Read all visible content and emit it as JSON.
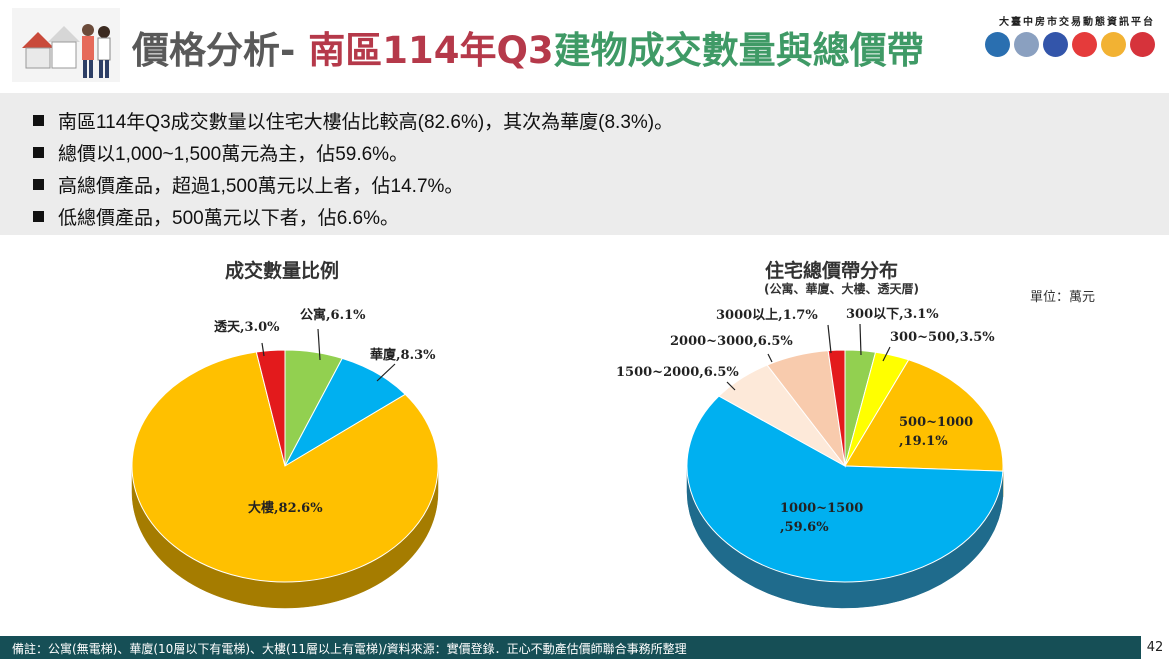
{
  "header": {
    "title_part1": "價格分析- ",
    "title_part2": "南區114年Q3",
    "title_part3": "建物成交數量與總價帶",
    "brand": "大臺中房市交易動態資訊平台"
  },
  "bullets": [
    "南區114年Q3成交數量以住宅大樓佔比較高(82.6%)，其次為華廈(8.3%)。",
    "總價以1,000~1,500萬元為主，佔59.6%。",
    "高總價產品，超過1,500萬元以上者，佔14.7%。",
    "低總價產品，500萬元以下者，佔6.6%。"
  ],
  "unit_label": "單位：萬元",
  "footer": {
    "note": "備註：公寓(無電梯)、華廈(10層以下有電梯)、大樓(11層以上有電梯)/資料來源：實價登錄．正心不動產估價師聯合事務所整理",
    "page": "42"
  },
  "colors": {
    "title_red": "#b5394a",
    "title_green": "#3f9a66",
    "footer_bg": "#164f56"
  },
  "chart_data": [
    {
      "type": "pie",
      "title": "成交數量比例",
      "slices": [
        {
          "label": "公寓,6.1%",
          "value": 6.1,
          "color": "#92d050",
          "dark": "#5f8f2a"
        },
        {
          "label": "華廈,8.3%",
          "value": 8.3,
          "color": "#00b0f0",
          "dark": "#0077a5"
        },
        {
          "label": "大樓,82.6%",
          "value": 82.6,
          "color": "#ffc000",
          "dark": "#a57c00"
        },
        {
          "label": "透天,3.0%",
          "value": 3.0,
          "color": "#e31a1c",
          "dark": "#951111"
        }
      ]
    },
    {
      "type": "pie",
      "title": "住宅總價帶分布",
      "subtitle": "(公寓、華廈、大樓、透天厝)",
      "slices": [
        {
          "label": "300以下,3.1%",
          "value": 3.1,
          "color": "#92d050",
          "dark": "#5f8f2a"
        },
        {
          "label": "300~500,3.5%",
          "value": 3.5,
          "color": "#ffff00",
          "dark": "#a6a600"
        },
        {
          "label": "500~1000\n,19.1%",
          "value": 19.1,
          "color": "#ffc000",
          "dark": "#a57c00"
        },
        {
          "label": "1000~1500\n,59.6%",
          "value": 59.6,
          "color": "#00b0f0",
          "dark": "#1f6b8c"
        },
        {
          "label": "1500~2000,6.5%",
          "value": 6.5,
          "color": "#fde9d9",
          "dark": "#b7a394"
        },
        {
          "label": "2000~3000,6.5%",
          "value": 6.5,
          "color": "#f8cbad",
          "dark": "#b08870"
        },
        {
          "label": "3000以上,1.7%",
          "value": 1.7,
          "color": "#e31a1c",
          "dark": "#951111"
        }
      ]
    }
  ]
}
